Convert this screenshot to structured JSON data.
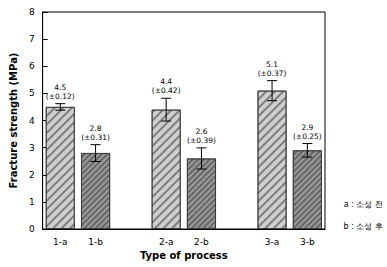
{
  "chart_data": {
    "type": "bar",
    "x_label": "Type of process",
    "y_label": "Fracture strength (MPa)",
    "categories": [
      "1-a",
      "1-b",
      null,
      "2-a",
      "2-b",
      null,
      "3-a",
      "3-b"
    ],
    "values": [
      4.5,
      2.8,
      null,
      4.4,
      2.6,
      null,
      5.1,
      2.9
    ],
    "errors": [
      0.12,
      0.31,
      null,
      0.42,
      0.39,
      null,
      0.37,
      0.25
    ],
    "value_labels": [
      "4.5\n(±0.12)",
      "2.8\n(±0.31)",
      null,
      "4.4\n(±0.42)",
      "2.6\n(±0.39)",
      null,
      "5.1\n(±0.37)",
      "2.9\n(±0.25)"
    ],
    "colors": [
      "#cfcfcf",
      "#9a9a9a",
      null,
      "#cfcfcf",
      "#9a9a9a",
      null,
      "#cfcfcf",
      "#9a9a9a"
    ],
    "data_labels": true,
    "ylim": [
      0,
      8
    ],
    "yticks": [
      0,
      1,
      2,
      3,
      4,
      5,
      6,
      7,
      8
    ],
    "grid": false,
    "annotations": [
      "a : 소성 전",
      "b : 소성 후"
    ]
  }
}
